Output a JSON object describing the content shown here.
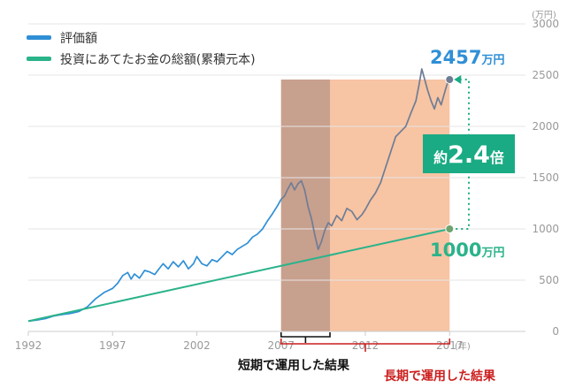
{
  "chart_data": {
    "type": "line",
    "title": "",
    "xlabel": "",
    "ylabel": "",
    "unit_label": "(万円)",
    "year_label": "(年)",
    "xlim": [
      1992,
      2021.5
    ],
    "ylim": [
      0,
      3000
    ],
    "x_ticks": [
      1992,
      1997,
      2002,
      2007,
      2012,
      2017
    ],
    "x_tick_labels": [
      "1992",
      "1997",
      "2002",
      "2007",
      "2012",
      "2017"
    ],
    "y_ticks": [
      0,
      500,
      1000,
      1500,
      2000,
      2500,
      3000
    ],
    "y_tick_labels": [
      "0",
      "500",
      "1000",
      "1500",
      "2000",
      "2500",
      "3000"
    ],
    "grid": true,
    "legend_position": "top-left",
    "series": [
      {
        "name": "評価額",
        "color": "#2f8fd6",
        "points": [
          [
            1992.0,
            100
          ],
          [
            1992.5,
            110
          ],
          [
            1993.0,
            125
          ],
          [
            1993.5,
            150
          ],
          [
            1994.0,
            165
          ],
          [
            1994.5,
            175
          ],
          [
            1995.0,
            195
          ],
          [
            1995.5,
            240
          ],
          [
            1996.0,
            320
          ],
          [
            1996.5,
            380
          ],
          [
            1997.0,
            420
          ],
          [
            1997.3,
            470
          ],
          [
            1997.6,
            545
          ],
          [
            1997.9,
            575
          ],
          [
            1998.1,
            510
          ],
          [
            1998.3,
            560
          ],
          [
            1998.6,
            520
          ],
          [
            1998.9,
            595
          ],
          [
            1999.2,
            580
          ],
          [
            1999.5,
            555
          ],
          [
            1999.8,
            620
          ],
          [
            2000.0,
            660
          ],
          [
            2000.3,
            610
          ],
          [
            2000.6,
            680
          ],
          [
            2000.9,
            630
          ],
          [
            2001.2,
            690
          ],
          [
            2001.5,
            610
          ],
          [
            2001.8,
            660
          ],
          [
            2002.0,
            730
          ],
          [
            2002.3,
            660
          ],
          [
            2002.6,
            640
          ],
          [
            2002.9,
            700
          ],
          [
            2003.2,
            680
          ],
          [
            2003.5,
            730
          ],
          [
            2003.8,
            780
          ],
          [
            2004.1,
            750
          ],
          [
            2004.4,
            800
          ],
          [
            2004.7,
            830
          ],
          [
            2005.0,
            860
          ],
          [
            2005.3,
            920
          ],
          [
            2005.6,
            950
          ],
          [
            2005.9,
            1000
          ],
          [
            2006.2,
            1080
          ],
          [
            2006.5,
            1150
          ],
          [
            2006.8,
            1230
          ],
          [
            2007.0,
            1290
          ]
        ]
      },
      {
        "name": "評価額 (highlighted period)",
        "color": "#6f7d94",
        "points": [
          [
            2007.0,
            1290
          ],
          [
            2007.2,
            1320
          ],
          [
            2007.4,
            1390
          ],
          [
            2007.6,
            1450
          ],
          [
            2007.8,
            1380
          ],
          [
            2008.0,
            1440
          ],
          [
            2008.2,
            1470
          ],
          [
            2008.4,
            1380
          ],
          [
            2008.6,
            1220
          ],
          [
            2008.8,
            1100
          ],
          [
            2009.0,
            940
          ],
          [
            2009.2,
            800
          ],
          [
            2009.4,
            880
          ],
          [
            2009.6,
            990
          ],
          [
            2009.8,
            1060
          ],
          [
            2010.0,
            1030
          ],
          [
            2010.3,
            1130
          ],
          [
            2010.6,
            1080
          ],
          [
            2010.9,
            1200
          ],
          [
            2011.2,
            1170
          ],
          [
            2011.5,
            1090
          ],
          [
            2011.8,
            1140
          ],
          [
            2012.0,
            1190
          ],
          [
            2012.3,
            1280
          ],
          [
            2012.6,
            1350
          ],
          [
            2012.9,
            1450
          ],
          [
            2013.2,
            1600
          ],
          [
            2013.5,
            1750
          ],
          [
            2013.8,
            1900
          ],
          [
            2014.1,
            1950
          ],
          [
            2014.4,
            2000
          ],
          [
            2014.7,
            2130
          ],
          [
            2015.0,
            2250
          ],
          [
            2015.2,
            2420
          ],
          [
            2015.35,
            2560
          ],
          [
            2015.5,
            2470
          ],
          [
            2015.7,
            2350
          ],
          [
            2015.9,
            2250
          ],
          [
            2016.1,
            2170
          ],
          [
            2016.3,
            2280
          ],
          [
            2016.5,
            2210
          ],
          [
            2016.7,
            2330
          ],
          [
            2016.9,
            2440
          ],
          [
            2017.0,
            2457
          ]
        ]
      },
      {
        "name": "投資にあてたお金の総額(累積元本)",
        "color": "#2bb38a",
        "points": [
          [
            1992.0,
            100
          ],
          [
            2017.0,
            1000
          ]
        ]
      }
    ],
    "bands": [
      {
        "name": "長期で運用した結果",
        "x_range": [
          2007.0,
          2017.0
        ],
        "color": "#f7c4a4"
      },
      {
        "name": "短期で運用した結果",
        "x_range": [
          2007.0,
          2009.9
        ],
        "color": "#c8a08e"
      }
    ],
    "annotations": {
      "final_value": "2457",
      "final_unit": "万円",
      "principal_value": "1000",
      "principal_unit": "万円",
      "ratio_prefix": "約",
      "ratio_value": "2.4",
      "ratio_suffix": "倍",
      "short_term_label": "短期で運用した結果",
      "long_term_label": "長期で運用した結果"
    },
    "colors": {
      "value_line": "#2f8fd6",
      "value_line_highlight": "#6f7d94",
      "principal_line": "#2bb38a",
      "band_long": "#f7c4a4",
      "band_short": "#c8a08e",
      "ratio_box": "#1aab84",
      "long_term_text": "#cc1f1f"
    }
  }
}
